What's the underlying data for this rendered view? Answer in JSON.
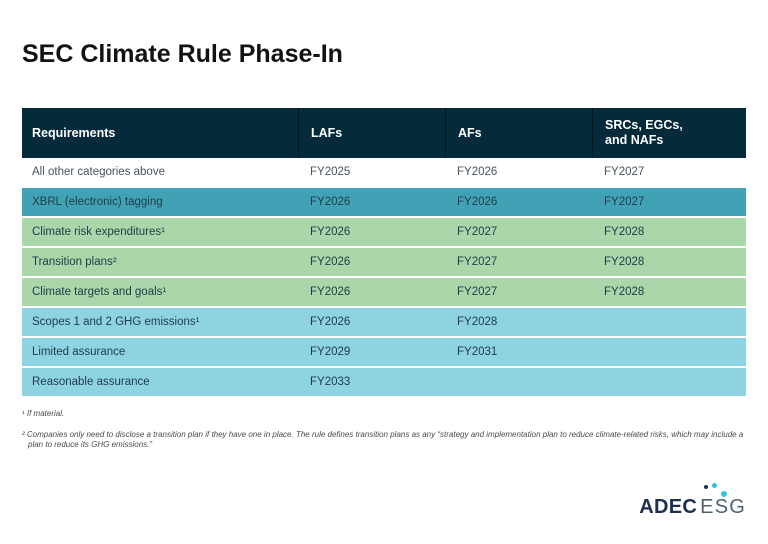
{
  "page_title": "SEC Climate Rule Phase-In",
  "chart_data": {
    "type": "table",
    "title": "SEC Climate Rule Phase-In",
    "columns": [
      "Requirements",
      "LAFs",
      "AFs",
      "SRCs, EGCs, and NAFs"
    ],
    "rows": [
      {
        "requirement": "All other categories above",
        "lafs": "FY2025",
        "afs": "FY2026",
        "srcs": "FY2027",
        "highlight": "white"
      },
      {
        "requirement": "XBRL (electronic) tagging",
        "lafs": "FY2026",
        "afs": "FY2026",
        "srcs": "FY2027",
        "highlight": "teal"
      },
      {
        "requirement": "Climate risk expenditures¹",
        "lafs": "FY2026",
        "afs": "FY2027",
        "srcs": "FY2028",
        "highlight": "green"
      },
      {
        "requirement": "Transition plans²",
        "lafs": "FY2026",
        "afs": "FY2027",
        "srcs": "FY2028",
        "highlight": "green"
      },
      {
        "requirement": "Climate targets and goals¹",
        "lafs": "FY2026",
        "afs": "FY2027",
        "srcs": "FY2028",
        "highlight": "green"
      },
      {
        "requirement": "Scopes 1 and 2 GHG emissions¹",
        "lafs": "FY2026",
        "afs": "FY2028",
        "srcs": "",
        "highlight": "blue"
      },
      {
        "requirement": "Limited assurance",
        "lafs": "FY2029",
        "afs": "FY2031",
        "srcs": "",
        "highlight": "blue"
      },
      {
        "requirement": "Reasonable assurance",
        "lafs": "FY2033",
        "afs": "",
        "srcs": "",
        "highlight": "blue"
      }
    ],
    "footnotes": [
      "¹ If material.",
      "² Companies only need to disclose a transition plan if they have one in place. The rule defines transition plans as any “strategy and implementation plan to reduce climate-related risks, which may include a plan to reduce its GHG emissions.”"
    ],
    "legend_position": "none",
    "grid": false
  },
  "logo": {
    "primary": "ADEC",
    "secondary": "ESG"
  },
  "colors": {
    "header-bg": "#052a3a",
    "header-text": "#ffffff",
    "row-teal": "#42a2b5",
    "row-green": "#a9d7aa",
    "row-blue": "#8ed3e2",
    "text-dark": "#1e3c49",
    "text-gray": "#49545b",
    "accent-cyan": "#2bc4e8",
    "logo-navy": "#1c2f4e",
    "logo-gray": "#4d6171"
  }
}
